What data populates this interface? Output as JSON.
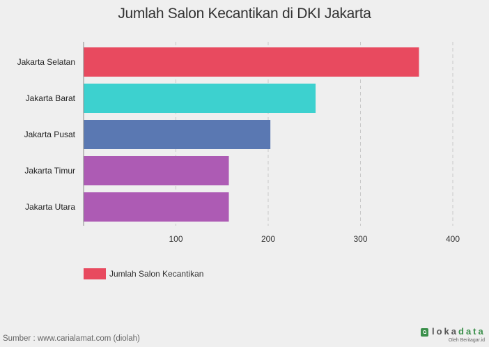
{
  "chart_data": {
    "type": "bar",
    "orientation": "horizontal",
    "title": "Jumlah Salon Kecantikan di DKI Jakarta",
    "categories": [
      "Jakarta Selatan",
      "Jakarta Barat",
      "Jakarta Pusat",
      "Jakarta Timur",
      "Jakarta Utara"
    ],
    "series": [
      {
        "name": "Jumlah Salon Kecantikan",
        "values": [
          363,
          251,
          202,
          157,
          157
        ],
        "colors": [
          "#e84a5f",
          "#3dd1cf",
          "#5a78b2",
          "#ad5bb4",
          "#ad5bb4"
        ]
      }
    ],
    "xlim": [
      0,
      400
    ],
    "xticks": [
      100,
      200,
      300,
      400
    ],
    "grid": true,
    "legend_position": "bottom-left"
  },
  "legend": {
    "label": "Jumlah Salon Kecantikan",
    "color": "#e84a5f"
  },
  "footer": {
    "source": "Sumber : www.carialamat.com (diolah)",
    "brand_main": "loka",
    "brand_accent": "data",
    "brand_sub": "Oleh Beritagar.id"
  }
}
